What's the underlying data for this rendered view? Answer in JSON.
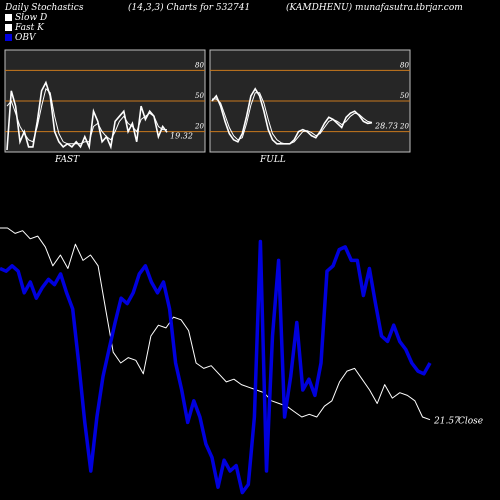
{
  "header": {
    "left": "Daily Stochastics",
    "middle": "(14,3,3) Charts for 532741",
    "right": "(KAMDHENU) munafasutra.tbrjar.com"
  },
  "legend": [
    {
      "label": "Slow  D",
      "color": "#ffffff"
    },
    {
      "label": "Fast K",
      "color": "#ffffff"
    },
    {
      "label": "OBV",
      "color": "#0000dd"
    }
  ],
  "chart_data": [
    {
      "type": "line",
      "title": "FAST",
      "y_ticks": [
        80,
        50,
        20
      ],
      "levels": [
        80,
        50,
        20
      ],
      "ylim": [
        0,
        100
      ],
      "last_value_label": "19.32",
      "series": [
        {
          "name": "Fast K",
          "values": [
            2,
            60,
            45,
            10,
            20,
            5,
            5,
            30,
            60,
            68,
            55,
            20,
            10,
            5,
            8,
            5,
            10,
            5,
            15,
            5,
            40,
            30,
            10,
            15,
            5,
            30,
            35,
            40,
            20,
            28,
            10,
            45,
            32,
            40,
            35,
            15,
            25,
            19.32
          ]
        },
        {
          "name": "Slow D",
          "values": [
            45,
            50,
            38,
            25,
            18,
            12,
            10,
            25,
            45,
            62,
            58,
            35,
            18,
            10,
            8,
            8,
            8,
            8,
            10,
            10,
            25,
            28,
            20,
            15,
            12,
            20,
            30,
            35,
            28,
            25,
            20,
            32,
            35,
            38,
            35,
            25,
            22,
            22
          ]
        }
      ]
    },
    {
      "type": "line",
      "title": "FULL",
      "y_ticks": [
        80,
        50,
        20
      ],
      "levels": [
        80,
        50,
        20
      ],
      "ylim": [
        0,
        100
      ],
      "last_value_label": "28.73",
      "series": [
        {
          "name": "Fast K",
          "values": [
            50,
            55,
            45,
            30,
            18,
            12,
            10,
            18,
            35,
            55,
            62,
            55,
            40,
            22,
            12,
            8,
            8,
            8,
            8,
            12,
            20,
            22,
            20,
            16,
            14,
            20,
            28,
            34,
            32,
            28,
            24,
            34,
            38,
            40,
            36,
            30,
            28,
            28.73
          ]
        },
        {
          "name": "Slow D",
          "values": [
            52,
            52,
            48,
            36,
            24,
            16,
            12,
            14,
            28,
            46,
            58,
            58,
            48,
            32,
            18,
            12,
            9,
            8,
            8,
            10,
            15,
            20,
            21,
            19,
            16,
            18,
            24,
            30,
            32,
            30,
            27,
            30,
            35,
            38,
            37,
            33,
            30,
            29
          ]
        }
      ]
    },
    {
      "type": "line",
      "title": "",
      "last_value_label": "21.57",
      "last_value_suffix": "Close",
      "series": [
        {
          "name": "Close",
          "values": [
            100,
            100,
            98,
            99,
            96,
            97,
            93,
            86,
            90,
            85,
            94,
            88,
            90,
            86,
            70,
            54,
            50,
            52,
            51,
            46,
            60,
            64,
            63,
            67,
            66,
            62,
            50,
            48,
            49,
            46,
            43,
            44,
            42,
            41,
            40,
            39,
            36,
            35,
            34,
            32,
            30,
            31,
            30,
            34,
            36,
            43,
            47,
            48,
            44,
            40,
            35,
            42,
            37,
            39,
            38,
            36,
            30,
            29
          ]
        },
        {
          "name": "OBV",
          "values": [
            85,
            84,
            86,
            84,
            76,
            80,
            74,
            78,
            81,
            79,
            83,
            76,
            70,
            50,
            28,
            10,
            30,
            45,
            55,
            65,
            74,
            72,
            76,
            83,
            86,
            80,
            76,
            80,
            70,
            50,
            40,
            28,
            36,
            30,
            20,
            15,
            4,
            14,
            10,
            12,
            2,
            5,
            30,
            95,
            10,
            60,
            88,
            30,
            45,
            65,
            40,
            44,
            38,
            50,
            84,
            86,
            92,
            93,
            88,
            88,
            75,
            85,
            72,
            60,
            58,
            64,
            58,
            55,
            50,
            47,
            46,
            50
          ]
        }
      ]
    }
  ],
  "colors": {
    "background": "#000000",
    "panel": "#262626",
    "panel_border": "#bfbfbf",
    "level": "#c8781e",
    "price": "#ffffff",
    "obv": "#0000dd",
    "text": "#ffffff"
  }
}
